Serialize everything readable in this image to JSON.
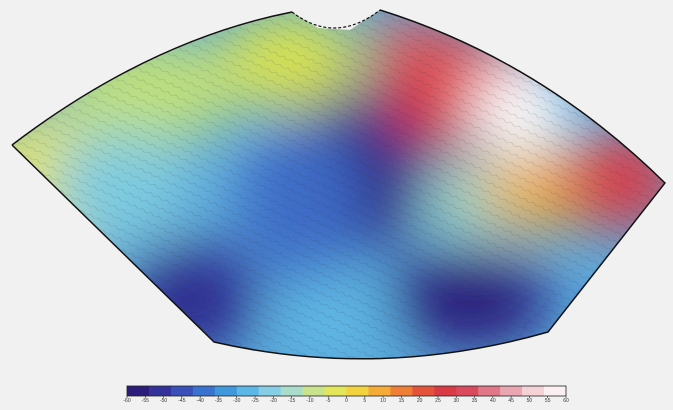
{
  "colorbar": {
    "range": [
      -60,
      60
    ],
    "ticks": [
      -60,
      -55,
      -50,
      -45,
      -40,
      -35,
      -30,
      -25,
      -20,
      -15,
      -10,
      -5,
      0,
      5,
      10,
      15,
      20,
      25,
      30,
      35,
      40,
      45,
      50,
      55,
      60
    ],
    "colors": [
      "#2a1c78",
      "#32329a",
      "#3b4fb8",
      "#3a72cf",
      "#3f97dc",
      "#5cb6e6",
      "#86cde6",
      "#a9dccb",
      "#c8e38c",
      "#e4e65a",
      "#f2d23f",
      "#f5ab38",
      "#ef7f35",
      "#e4543a",
      "#d93a45",
      "#d84a5c",
      "#e07688",
      "#eaa6b0",
      "#f4d2d6",
      "#fbf0f1"
    ]
  }
}
